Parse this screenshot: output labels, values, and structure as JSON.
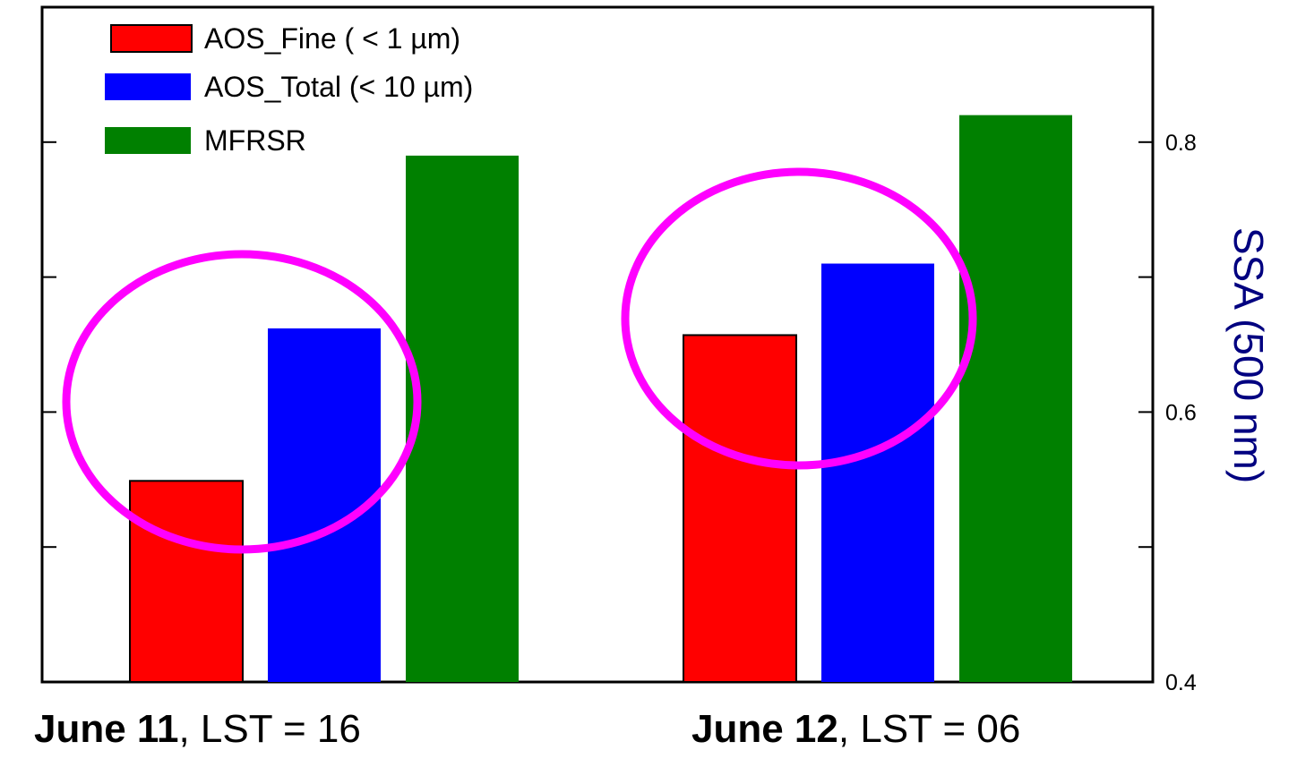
{
  "chart_data": {
    "type": "bar",
    "categories": [
      {
        "date": "June 11",
        "suffix": ", LST = 16"
      },
      {
        "date": "June 12",
        "suffix": ", LST = 06"
      }
    ],
    "series": [
      {
        "name": "AOS_Fine ( <  1 µm)",
        "values": [
          0.549,
          0.657
        ],
        "color": "#ff0000"
      },
      {
        "name": "AOS_Total (< 10 µm)",
        "values": [
          0.662,
          0.71
        ],
        "color": "#0000ff"
      },
      {
        "name": "MFRSR",
        "values": [
          0.79,
          0.82
        ],
        "color": "#008000"
      }
    ],
    "ylabel": "SSA (500 nm)",
    "ylabel_color": "#000080",
    "ylim": [
      0.4,
      0.9
    ],
    "yticks": [
      "0.4",
      "0.6",
      "0.8"
    ],
    "grid": false,
    "legend_position": "top-left",
    "annotation_color": "#ff00ff"
  }
}
